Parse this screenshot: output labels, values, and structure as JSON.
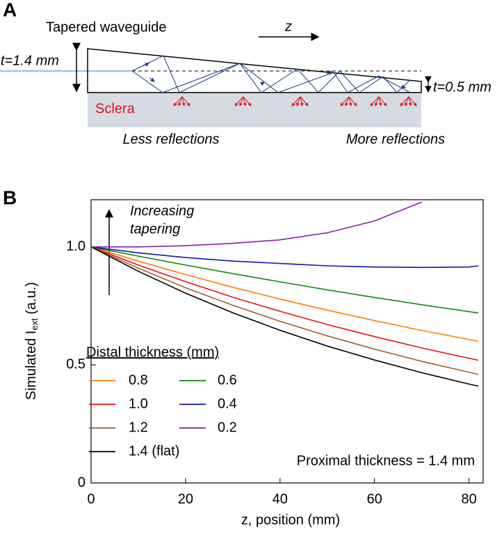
{
  "panel_labels": {
    "a": "A",
    "b": "B"
  },
  "diagram": {
    "title": "Tapered waveguide",
    "direction": "z",
    "proximal": "t=1.4 mm",
    "distal": "t=0.5 mm",
    "tissue": "Sclera",
    "left_caption": "Less reflections",
    "right_caption": "More reflections"
  },
  "chart_data": {
    "type": "line",
    "xlabel": "z, position (mm)",
    "ylabel": {
      "main": "Simulated I",
      "sub": "ext",
      "rest": " (a.u.)"
    },
    "annotation": {
      "line1": "Increasing",
      "line2": "tapering"
    },
    "note": "Proximal thickness = 1.4 mm",
    "legend_title": "Distal thickness (mm)",
    "x": [
      0,
      10,
      20,
      30,
      40,
      50,
      60,
      70,
      80,
      82
    ],
    "series": [
      {
        "name": "0.8",
        "color": "#ff7f00",
        "values": [
          1,
          0.94,
          0.883,
          0.829,
          0.779,
          0.732,
          0.688,
          0.646,
          0.608,
          0.6
        ]
      },
      {
        "name": "1.0",
        "color": "#e8101a",
        "values": [
          1,
          0.923,
          0.853,
          0.787,
          0.727,
          0.671,
          0.62,
          0.572,
          0.528,
          0.52
        ]
      },
      {
        "name": "1.2",
        "color": "#a0622d",
        "values": [
          1,
          0.91,
          0.827,
          0.753,
          0.685,
          0.623,
          0.567,
          0.515,
          0.469,
          0.46
        ]
      },
      {
        "name": "1.4 (flat)",
        "color": "#000000",
        "values": [
          1,
          0.897,
          0.804,
          0.721,
          0.647,
          0.58,
          0.521,
          0.467,
          0.419,
          0.41
        ]
      },
      {
        "name": "0.6",
        "color": "#0f8a0f",
        "values": [
          1,
          0.961,
          0.923,
          0.887,
          0.852,
          0.818,
          0.786,
          0.755,
          0.726,
          0.72
        ]
      },
      {
        "name": "0.4",
        "color": "#1414b4",
        "values": [
          1,
          0.975,
          0.955,
          0.94,
          0.93,
          0.92,
          0.915,
          0.913,
          0.915,
          0.92
        ]
      },
      {
        "name": "0.2",
        "color": "#8c1fa8",
        "values": [
          1,
          1.0,
          1.005,
          1.015,
          1.03,
          1.06,
          1.11,
          1.19,
          null,
          null
        ]
      }
    ],
    "xlim": [
      0,
      83
    ],
    "ylim": [
      0,
      1.2
    ],
    "xticks": [
      0,
      20,
      40,
      60,
      80
    ],
    "yticks": [
      0,
      0.5,
      {
        "value": 1,
        "label": "1.0"
      }
    ]
  }
}
